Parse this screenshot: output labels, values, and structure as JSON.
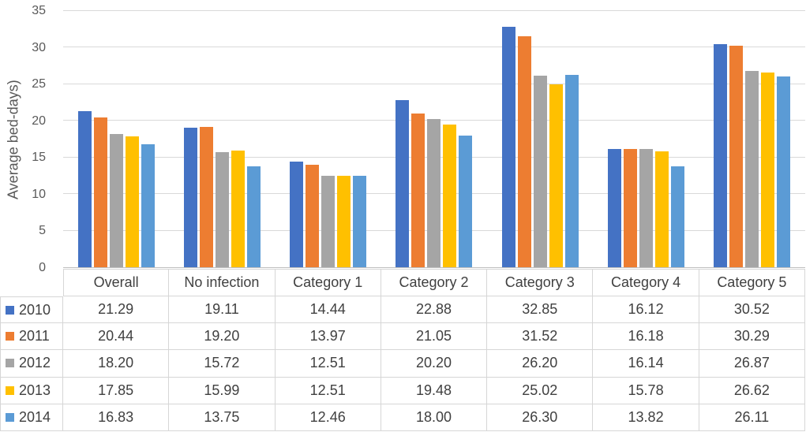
{
  "chart_data": {
    "type": "bar",
    "title": "",
    "xlabel": "",
    "ylabel": "Average bed-days)",
    "categories": [
      "Overall",
      "No infection",
      "Category 1",
      "Category 2",
      "Category 3",
      "Category 4",
      "Category 5"
    ],
    "series": [
      {
        "name": "2010",
        "color": "#4472C4",
        "values": [
          21.29,
          19.11,
          14.44,
          22.88,
          32.85,
          16.12,
          30.52
        ]
      },
      {
        "name": "2011",
        "color": "#ED7D31",
        "values": [
          20.44,
          19.2,
          13.97,
          21.05,
          31.52,
          16.18,
          30.29
        ]
      },
      {
        "name": "2012",
        "color": "#A5A5A5",
        "values": [
          18.2,
          15.72,
          12.51,
          20.2,
          26.2,
          16.14,
          26.87
        ]
      },
      {
        "name": "2013",
        "color": "#FFC000",
        "values": [
          17.85,
          15.99,
          12.51,
          19.48,
          25.02,
          15.78,
          26.62
        ]
      },
      {
        "name": "2014",
        "color": "#5B9BD5",
        "values": [
          16.83,
          13.75,
          12.46,
          18.0,
          26.3,
          13.82,
          26.11
        ]
      }
    ],
    "y_axis": {
      "min": 0,
      "max": 35,
      "step": 5,
      "ticks": [
        "0",
        "5",
        "10",
        "15",
        "20",
        "25",
        "30",
        "35"
      ]
    },
    "grid": true,
    "legend_position": "table-left"
  },
  "table": {
    "corner": "",
    "headers": [
      "Overall",
      "No infection",
      "Category 1",
      "Category 2",
      "Category 3",
      "Category 4",
      "Category 5"
    ],
    "rows": [
      {
        "label": "2010",
        "cells": [
          "21.29",
          "19.11",
          "14.44",
          "22.88",
          "32.85",
          "16.12",
          "30.52"
        ]
      },
      {
        "label": "2011",
        "cells": [
          "20.44",
          "19.20",
          "13.97",
          "21.05",
          "31.52",
          "16.18",
          "30.29"
        ]
      },
      {
        "label": "2012",
        "cells": [
          "18.20",
          "15.72",
          "12.51",
          "20.20",
          "26.20",
          "16.14",
          "26.87"
        ]
      },
      {
        "label": "2013",
        "cells": [
          "17.85",
          "15.99",
          "12.51",
          "19.48",
          "25.02",
          "15.78",
          "26.62"
        ]
      },
      {
        "label": "2014",
        "cells": [
          "16.83",
          "13.75",
          "12.46",
          "18.00",
          "26.30",
          "13.82",
          "26.11"
        ]
      }
    ]
  },
  "colors": {
    "gridline": "#D9D9D9",
    "axis_line": "#BFBFBF",
    "table_border": "#D6D6D6",
    "text": "#404040",
    "tick_text": "#595959",
    "background": "#FFFFFF"
  }
}
